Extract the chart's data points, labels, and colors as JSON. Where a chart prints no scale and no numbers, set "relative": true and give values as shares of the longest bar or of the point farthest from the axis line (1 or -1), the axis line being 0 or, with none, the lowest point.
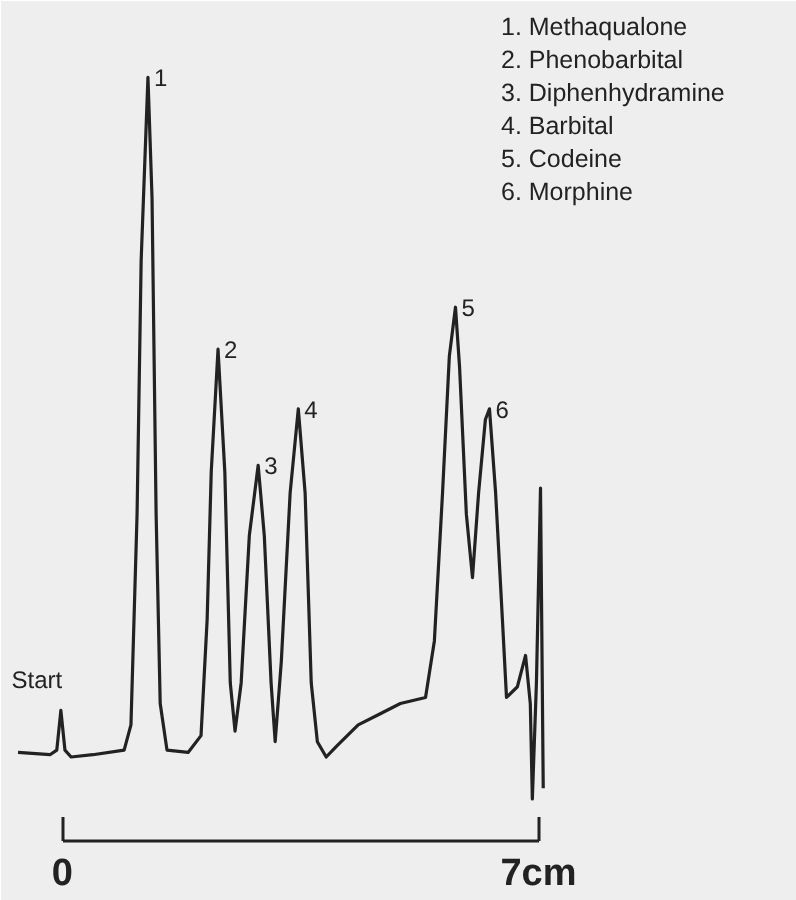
{
  "chart_data": {
    "type": "line",
    "relative": true,
    "color": "#222222",
    "line_style": "solid",
    "x": [
      -0.65,
      -0.18,
      -0.08,
      -0.02,
      0.04,
      0.13,
      0.45,
      0.91,
      1.01,
      1.1,
      1.16,
      1.26,
      1.32,
      1.38,
      1.44,
      1.54,
      1.85,
      2.04,
      2.13,
      2.19,
      2.29,
      2.39,
      2.47,
      2.54,
      2.63,
      2.75,
      2.88,
      2.97,
      3.07,
      3.13,
      3.22,
      3.35,
      3.47,
      3.57,
      3.66,
      3.75,
      3.88,
      4.03,
      4.35,
      4.66,
      4.97,
      5.34,
      5.47,
      5.59,
      5.69,
      5.78,
      5.84,
      5.94,
      6.03,
      6.12,
      6.22,
      6.28,
      6.37,
      6.47,
      6.53,
      6.69,
      6.81,
      6.88,
      6.91,
      6.97,
      7.03,
      7.07
    ],
    "values": [
      0.116,
      0.113,
      0.119,
      0.171,
      0.119,
      0.11,
      0.113,
      0.119,
      0.152,
      0.428,
      0.76,
      1.0,
      0.842,
      0.428,
      0.18,
      0.119,
      0.116,
      0.138,
      0.29,
      0.483,
      0.644,
      0.483,
      0.207,
      0.144,
      0.207,
      0.4,
      0.492,
      0.4,
      0.207,
      0.13,
      0.235,
      0.456,
      0.566,
      0.456,
      0.207,
      0.13,
      0.11,
      0.124,
      0.152,
      0.166,
      0.18,
      0.188,
      0.262,
      0.456,
      0.635,
      0.699,
      0.621,
      0.428,
      0.345,
      0.456,
      0.552,
      0.566,
      0.456,
      0.29,
      0.188,
      0.202,
      0.243,
      0.18,
      0.055,
      0.207,
      0.462,
      0.069
    ],
    "xlim": [
      -0.9,
      10.8
    ],
    "xticks": [
      0,
      {
        "value": 7,
        "label": "7cm"
      }
    ],
    "annotations": [
      {
        "text": "Start",
        "x": -0.02,
        "y": 0.171
      },
      {
        "text": "1",
        "x": 1.26,
        "y": 1.0
      },
      {
        "text": "2",
        "x": 2.29,
        "y": 0.644
      },
      {
        "text": "3",
        "x": 2.88,
        "y": 0.492
      },
      {
        "text": "4",
        "x": 3.47,
        "y": 0.566
      },
      {
        "text": "5",
        "x": 5.78,
        "y": 0.699
      },
      {
        "text": "6",
        "x": 6.28,
        "y": 0.566
      },
      "1.  Methaqualone",
      "2.  Phenobarbital",
      "3.  Diphenhydramine",
      "4.  Barbital",
      "5.  Codeine",
      "6.  Morphine"
    ]
  }
}
